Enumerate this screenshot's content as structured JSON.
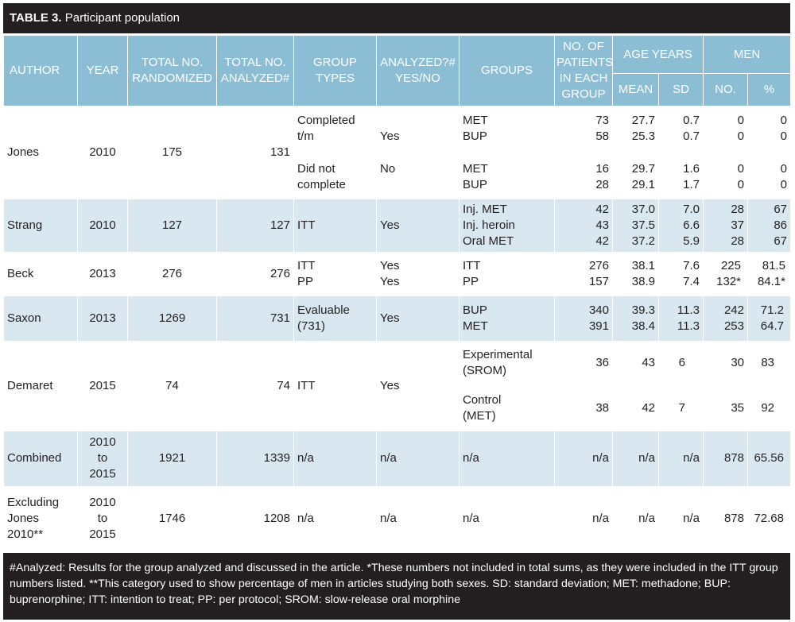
{
  "title": {
    "label": "TABLE 3.",
    "text": "Participant population"
  },
  "headers": {
    "author": "AUTHOR",
    "year": "YEAR",
    "randomized": [
      "TOTAL NO.",
      "RANDOMIZED"
    ],
    "analyzed": [
      "TOTAL NO.",
      "ANALYZED#"
    ],
    "group_types": [
      "GROUP",
      "TYPES"
    ],
    "analyzed_yn": [
      "ANALYZED?#",
      "YES/NO"
    ],
    "groups": "GROUPS",
    "patients": [
      "NO. OF",
      "PATIENTS",
      "IN EACH",
      "GROUP"
    ],
    "age_years": "AGE YEARS",
    "men": "MEN",
    "mean": "MEAN",
    "sd": "SD",
    "no": "NO.",
    "pct": "%"
  },
  "rows": [
    {
      "author": [
        "Jones"
      ],
      "year": [
        "2010"
      ],
      "randomized": "175",
      "analyzed": "131",
      "blocks": [
        {
          "types": [
            "Completed",
            "t/m"
          ],
          "yn": "Yes",
          "groups": [
            "MET",
            "BUP"
          ],
          "patients": [
            "73",
            "58"
          ],
          "mean": [
            "27.7",
            "25.3"
          ],
          "sd": [
            "0.7",
            "0.7"
          ],
          "no": [
            "0",
            "0"
          ],
          "pct": [
            "0",
            "0"
          ]
        },
        {
          "types": [
            "Did not",
            "complete"
          ],
          "yn": "No",
          "groups": [
            "MET",
            "BUP"
          ],
          "patients": [
            "16",
            "28"
          ],
          "mean": [
            "29.7",
            "29.1"
          ],
          "sd": [
            "1.6",
            "1.7"
          ],
          "no": [
            "0",
            "0"
          ],
          "pct": [
            "0",
            "0"
          ]
        }
      ]
    },
    {
      "author": [
        "Strang"
      ],
      "year": [
        "2010"
      ],
      "randomized": "127",
      "analyzed": "127",
      "blocks": [
        {
          "types": [
            "ITT"
          ],
          "yn": "Yes",
          "groups": [
            "Inj. MET",
            "Inj. heroin",
            "Oral MET"
          ],
          "patients": [
            "42",
            "43",
            "42"
          ],
          "mean": [
            "37.0",
            "37.5",
            "37.2"
          ],
          "sd": [
            "7.0",
            "6.6",
            "5.9"
          ],
          "no": [
            "28",
            "37",
            "28"
          ],
          "pct": [
            "67",
            "86",
            "67"
          ]
        }
      ]
    },
    {
      "author": [
        "Beck"
      ],
      "year": [
        "2013"
      ],
      "randomized": "276",
      "analyzed": "276",
      "blocks": [
        {
          "types": [
            "ITT",
            "PP"
          ],
          "yn_list": [
            "Yes",
            "Yes"
          ],
          "groups": [
            "ITT",
            "PP"
          ],
          "patients": [
            "276",
            "157"
          ],
          "mean": [
            "38.1",
            "38.9"
          ],
          "sd": [
            "7.6",
            "7.4"
          ],
          "no": [
            "225",
            "132*"
          ],
          "pct": [
            "81.5",
            "84.1*"
          ]
        }
      ]
    },
    {
      "author": [
        "Saxon"
      ],
      "year": [
        "2013"
      ],
      "randomized": "1269",
      "analyzed": "731",
      "blocks": [
        {
          "types": [
            "Evaluable",
            "(731)"
          ],
          "yn": "Yes",
          "groups": [
            "BUP",
            "MET"
          ],
          "patients": [
            "340",
            "391"
          ],
          "mean": [
            "39.3",
            "38.4"
          ],
          "sd": [
            "11.3",
            "11.3"
          ],
          "no": [
            "242",
            "253"
          ],
          "pct": [
            "71.2",
            "64.7"
          ]
        }
      ]
    },
    {
      "author": [
        "Demaret"
      ],
      "year": [
        "2015"
      ],
      "randomized": "74",
      "analyzed": "74",
      "types_single": "ITT",
      "yn_single": "Yes",
      "subgroups": [
        {
          "groups": [
            "Experimental",
            "(SROM)"
          ],
          "patients": "36",
          "mean": "43",
          "sd": "6",
          "no": "30",
          "pct": "83"
        },
        {
          "groups": [
            "Control",
            "(MET)"
          ],
          "patients": "38",
          "mean": "42",
          "sd": "7",
          "no": "35",
          "pct": "92"
        }
      ]
    },
    {
      "author": [
        "Combined"
      ],
      "year": [
        "2010",
        "to",
        "2015"
      ],
      "randomized": "1921",
      "analyzed": "1339",
      "summary": {
        "types": "n/a",
        "yn": "n/a",
        "groups": "n/a",
        "patients": "n/a",
        "mean": "n/a",
        "sd": "n/a",
        "no": "878",
        "pct": "65.56"
      }
    },
    {
      "author": [
        "Excluding",
        "Jones",
        "2010**"
      ],
      "year": [
        "2010",
        "to",
        "2015"
      ],
      "randomized": "1746",
      "analyzed": "1208",
      "summary": {
        "types": "n/a",
        "yn": "n/a",
        "groups": "n/a",
        "patients": "n/a",
        "mean": "n/a",
        "sd": "n/a",
        "no": "878",
        "pct": "72.68"
      }
    }
  ],
  "footnote": "#Analyzed: Results for the group analyzed and discussed in the article. *These numbers not included in total sums, as they were included in the ITT group numbers listed. **This category used to show percentage of men in articles studying both sexes. SD: standard deviation; MET: methadone; BUP: buprenorphine; ITT: intention to treat; PP: per protocol; SROM: slow-release oral morphine"
}
